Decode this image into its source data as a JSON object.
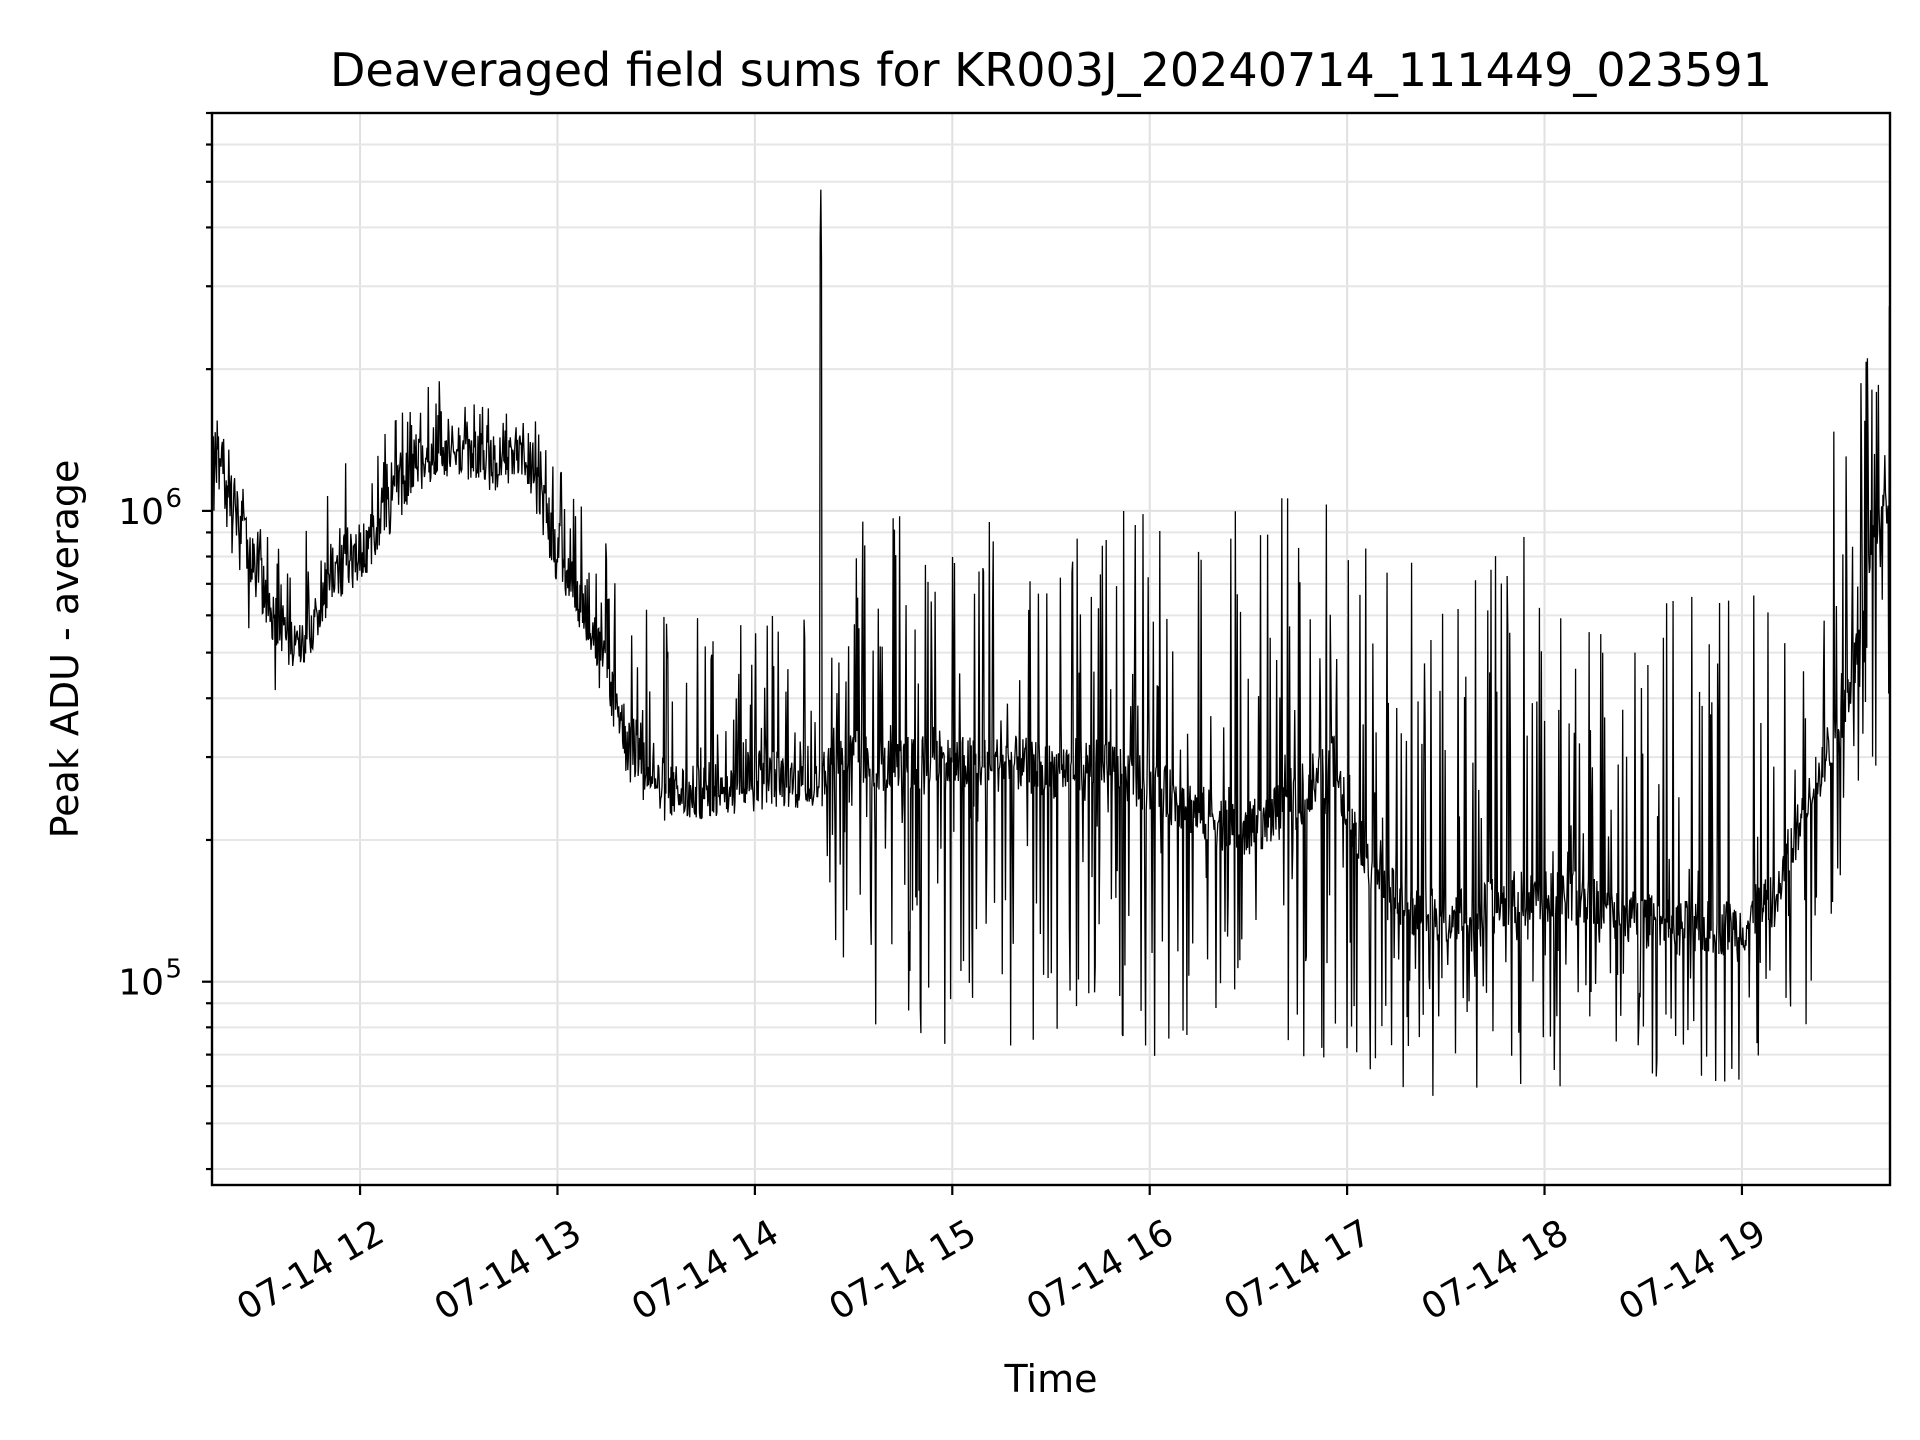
{
  "chart_data": {
    "type": "line",
    "title": "Deaveraged field sums for KR003J_20240714_111449_023591",
    "xlabel": "Time",
    "ylabel": "Peak ADU - average",
    "yscale": "log",
    "ylim": [
      37000,
      7000000
    ],
    "xlim": [
      "2024-07-14 11:15",
      "2024-07-14 19:45"
    ],
    "x_ticks": [
      {
        "time": "2024-07-14 12:00",
        "label": "07-14 12"
      },
      {
        "time": "2024-07-14 13:00",
        "label": "07-14 13"
      },
      {
        "time": "2024-07-14 14:00",
        "label": "07-14 14"
      },
      {
        "time": "2024-07-14 15:00",
        "label": "07-14 15"
      },
      {
        "time": "2024-07-14 16:00",
        "label": "07-14 16"
      },
      {
        "time": "2024-07-14 17:00",
        "label": "07-14 17"
      },
      {
        "time": "2024-07-14 18:00",
        "label": "07-14 18"
      },
      {
        "time": "2024-07-14 19:00",
        "label": "07-14 19"
      }
    ],
    "y_ticks": [
      {
        "value": 100000,
        "base": "10",
        "exp": "5"
      },
      {
        "value": 1000000,
        "base": "10",
        "exp": "6"
      }
    ],
    "grid": true,
    "series": [
      {
        "color": "#000000",
        "x": [
          "2024-07-14 11:15",
          "2024-07-14 11:18",
          "2024-07-14 11:21",
          "2024-07-14 11:24",
          "2024-07-14 11:27",
          "2024-07-14 11:30",
          "2024-07-14 11:33",
          "2024-07-14 11:36",
          "2024-07-14 11:39",
          "2024-07-14 11:42",
          "2024-07-14 11:45",
          "2024-07-14 11:48",
          "2024-07-14 11:51",
          "2024-07-14 11:54",
          "2024-07-14 11:57",
          "2024-07-14 12:00",
          "2024-07-14 12:05",
          "2024-07-14 12:10",
          "2024-07-14 12:15",
          "2024-07-14 12:20",
          "2024-07-14 12:25",
          "2024-07-14 12:30",
          "2024-07-14 12:35",
          "2024-07-14 12:40",
          "2024-07-14 12:45",
          "2024-07-14 12:50",
          "2024-07-14 12:55",
          "2024-07-14 13:00",
          "2024-07-14 13:05",
          "2024-07-14 13:10",
          "2024-07-14 13:15",
          "2024-07-14 13:20",
          "2024-07-14 13:25",
          "2024-07-14 13:30",
          "2024-07-14 13:40",
          "2024-07-14 13:50",
          "2024-07-14 14:00",
          "2024-07-14 14:10",
          "2024-07-14 14:15",
          "2024-07-14 14:19",
          "2024-07-14 14:20",
          "2024-07-14 14:21",
          "2024-07-14 14:25",
          "2024-07-14 14:30",
          "2024-07-14 14:35",
          "2024-07-14 14:40",
          "2024-07-14 14:45",
          "2024-07-14 14:50",
          "2024-07-14 14:55",
          "2024-07-14 15:00",
          "2024-07-14 15:10",
          "2024-07-14 15:20",
          "2024-07-14 15:30",
          "2024-07-14 15:40",
          "2024-07-14 15:50",
          "2024-07-14 16:00",
          "2024-07-14 16:10",
          "2024-07-14 16:20",
          "2024-07-14 16:30",
          "2024-07-14 16:40",
          "2024-07-14 16:50",
          "2024-07-14 16:55",
          "2024-07-14 17:00",
          "2024-07-14 17:10",
          "2024-07-14 17:20",
          "2024-07-14 17:30",
          "2024-07-14 17:40",
          "2024-07-14 17:50",
          "2024-07-14 18:00",
          "2024-07-14 18:05",
          "2024-07-14 18:10",
          "2024-07-14 18:20",
          "2024-07-14 18:30",
          "2024-07-14 18:40",
          "2024-07-14 18:50",
          "2024-07-14 19:00",
          "2024-07-14 19:10",
          "2024-07-14 19:20",
          "2024-07-14 19:25",
          "2024-07-14 19:30",
          "2024-07-14 19:35",
          "2024-07-14 19:40",
          "2024-07-14 19:45"
        ],
        "y_base": [
          1300000,
          1250000,
          1050000,
          900000,
          800000,
          700000,
          620000,
          560000,
          520000,
          500000,
          560000,
          650000,
          720000,
          760000,
          780000,
          800000,
          900000,
          1050000,
          1200000,
          1300000,
          1350000,
          1350000,
          1300000,
          1250000,
          1300000,
          1350000,
          1100000,
          850000,
          700000,
          580000,
          450000,
          350000,
          300000,
          265000,
          250000,
          260000,
          275000,
          270000,
          265000,
          270000,
          270000,
          280000,
          300000,
          300000,
          290000,
          290000,
          290000,
          290000,
          290000,
          290000,
          290000,
          290000,
          280000,
          290000,
          280000,
          260000,
          240000,
          220000,
          210000,
          230000,
          250000,
          300000,
          240000,
          160000,
          140000,
          140000,
          140000,
          150000,
          150000,
          160000,
          150000,
          140000,
          135000,
          130000,
          130000,
          130000,
          150000,
          250000,
          300000,
          350000,
          500000,
          900000,
          1100000
        ],
        "y_high": [
          1800000,
          1900000,
          1500000,
          1300000,
          1200000,
          1100000,
          950000,
          850000,
          800000,
          900000,
          950000,
          1000000,
          1150000,
          1300000,
          1250000,
          1350000,
          1450000,
          1550000,
          1700000,
          1850000,
          1900000,
          1850000,
          1700000,
          1650000,
          1700000,
          1750000,
          1500000,
          1250000,
          1100000,
          1000000,
          900000,
          750000,
          700000,
          650000,
          600000,
          600000,
          620000,
          650000,
          600000,
          700000,
          5200000,
          900000,
          1000000,
          1000000,
          1000000,
          1000000,
          1000000,
          1000000,
          1000000,
          1000000,
          1000000,
          1000000,
          1000000,
          1000000,
          1000000,
          1000000,
          1000000,
          1000000,
          1050000,
          1100000,
          1100000,
          1050000,
          900000,
          800000,
          900000,
          1000000,
          1000000,
          1050000,
          1100000,
          950000,
          700000,
          600000,
          550000,
          700000,
          750000,
          700000,
          600000,
          700000,
          1200000,
          1800000,
          2200000,
          2500000,
          2800000
        ],
        "y_low": [
          1000000,
          900000,
          700000,
          550000,
          420000,
          380000,
          400000,
          420000,
          430000,
          430000,
          500000,
          560000,
          620000,
          650000,
          660000,
          680000,
          780000,
          900000,
          1050000,
          1150000,
          1200000,
          1200000,
          1150000,
          1100000,
          1150000,
          1200000,
          900000,
          700000,
          580000,
          480000,
          360000,
          280000,
          240000,
          220000,
          215000,
          220000,
          230000,
          235000,
          230000,
          240000,
          90000,
          88000,
          85000,
          82000,
          80000,
          78000,
          76000,
          75000,
          74000,
          73000,
          72000,
          72000,
          70000,
          70000,
          68000,
          66000,
          64000,
          62000,
          60000,
          62000,
          64000,
          60000,
          58000,
          56000,
          55000,
          55000,
          55000,
          56000,
          58000,
          60000,
          62000,
          63000,
          63000,
          62000,
          60000,
          62000,
          70000,
          80000,
          100000,
          150000,
          200000,
          250000,
          400000
        ]
      }
    ]
  }
}
